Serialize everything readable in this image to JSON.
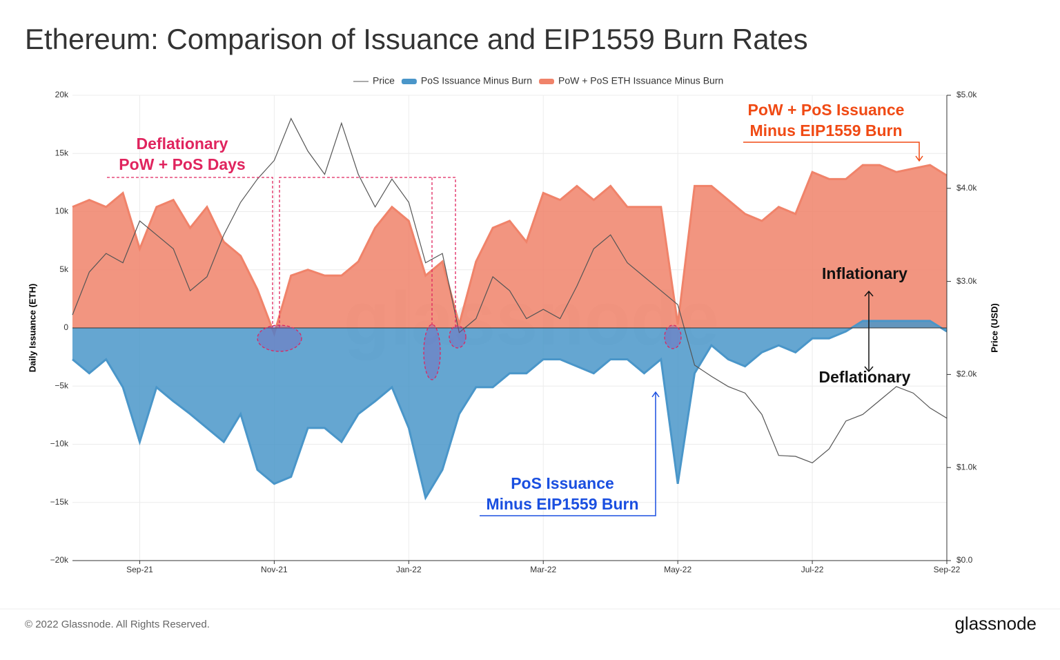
{
  "chart_data": {
    "type": "area",
    "title": "Ethereum: Comparison of Issuance and EIP1559 Burn Rates",
    "y_label": "Daily Issuance (ETH)",
    "y2_label": "Price (USD)",
    "watermark": "glassnode",
    "footer": "© 2022 Glassnode. All Rights Reserved.",
    "brand": "glassnode",
    "categories": [
      null,
      null,
      null,
      null,
      "Sep-21",
      null,
      null,
      null,
      null,
      null,
      null,
      null,
      "Nov-21",
      null,
      null,
      null,
      null,
      null,
      null,
      null,
      "Jan-22",
      null,
      null,
      null,
      null,
      null,
      null,
      null,
      "Mar-22",
      null,
      null,
      null,
      null,
      null,
      null,
      null,
      "May-22",
      null,
      null,
      null,
      null,
      null,
      null,
      null,
      "Jul-22",
      null,
      null,
      null,
      null,
      null,
      null,
      null,
      "Sep-22"
    ],
    "series": [
      {
        "name": "Price",
        "color": "#555555",
        "axis": "y2",
        "kind": "line",
        "values": [
          2640,
          3100,
          3300,
          3200,
          3650,
          3500,
          3350,
          2900,
          3050,
          3500,
          3850,
          4100,
          4300,
          4750,
          4400,
          4150,
          4700,
          4150,
          3800,
          4100,
          3850,
          3200,
          3300,
          2450,
          2600,
          3050,
          2900,
          2600,
          2700,
          2600,
          2950,
          3350,
          3500,
          3200,
          3050,
          2900,
          2750,
          2100,
          1980,
          1870,
          1800,
          1570,
          1130,
          1120,
          1050,
          1200,
          1500,
          1570,
          1720,
          1870,
          1800,
          1640,
          1530
        ]
      },
      {
        "name": "PoS Issuance Minus Burn",
        "color": "#4a96c9",
        "kind": "area",
        "values": [
          -2700,
          -3900,
          -2700,
          -5100,
          -9800,
          -5100,
          -6300,
          -7400,
          -8600,
          -9800,
          -7400,
          -12200,
          -13400,
          -12800,
          -8600,
          -8600,
          -9800,
          -7400,
          -6300,
          -5100,
          -8600,
          -14600,
          -12200,
          -7400,
          -5100,
          -5100,
          -3900,
          -3900,
          -2700,
          -2700,
          -3300,
          -3900,
          -2700,
          -2700,
          -3900,
          -2700,
          -13400,
          -3900,
          -1500,
          -2700,
          -3300,
          -2100,
          -1500,
          -2100,
          -900,
          -900,
          -300,
          600,
          600,
          600,
          600,
          600,
          -300
        ]
      },
      {
        "name": "PoW + PoS ETH Issuance Minus Burn",
        "color": "#f0836a",
        "kind": "area",
        "values": [
          10400,
          11000,
          10400,
          11600,
          6800,
          10400,
          11000,
          8600,
          10400,
          7400,
          6200,
          3300,
          -500,
          4500,
          5000,
          4500,
          4500,
          5700,
          8600,
          10400,
          9200,
          4500,
          5700,
          300,
          5700,
          8600,
          9200,
          7400,
          11600,
          11000,
          12200,
          11000,
          12200,
          10400,
          10400,
          10400,
          300,
          12200,
          12200,
          11000,
          9800,
          9200,
          10400,
          9800,
          13400,
          12800,
          12800,
          14000,
          14000,
          13400,
          13700,
          14000,
          13100
        ]
      }
    ],
    "ylim": [
      -20000,
      20000
    ],
    "yticks": [
      {
        "value": -20000,
        "label": "−20k"
      },
      {
        "value": -15000,
        "label": "−15k"
      },
      {
        "value": -10000,
        "label": "−10k"
      },
      {
        "value": -5000,
        "label": "−5k"
      },
      0,
      {
        "value": 5000,
        "label": "5k"
      },
      {
        "value": 10000,
        "label": "10k"
      },
      {
        "value": 15000,
        "label": "15k"
      },
      {
        "value": 20000,
        "label": "20k"
      }
    ],
    "y2lim": [
      0,
      5000
    ],
    "y2ticks": [
      {
        "value": 0,
        "label": "$0.0"
      },
      {
        "value": 1000,
        "label": "$1.0k"
      },
      {
        "value": 2000,
        "label": "$2.0k"
      },
      {
        "value": 3000,
        "label": "$3.0k"
      },
      {
        "value": 4000,
        "label": "$4.0k"
      },
      {
        "value": 5000,
        "label": "$5.0k"
      }
    ],
    "grid": true,
    "annotations": {
      "deflationary_days": [
        "Deflationary",
        "PoW + PoS Days"
      ],
      "pow_pos": [
        "PoW + PoS Issuance",
        "Minus EIP1559 Burn"
      ],
      "pos": [
        "PoS Issuance",
        "Minus EIP1559 Burn"
      ],
      "inflationary": "Inflationary",
      "deflationary": "Deflationary"
    }
  }
}
